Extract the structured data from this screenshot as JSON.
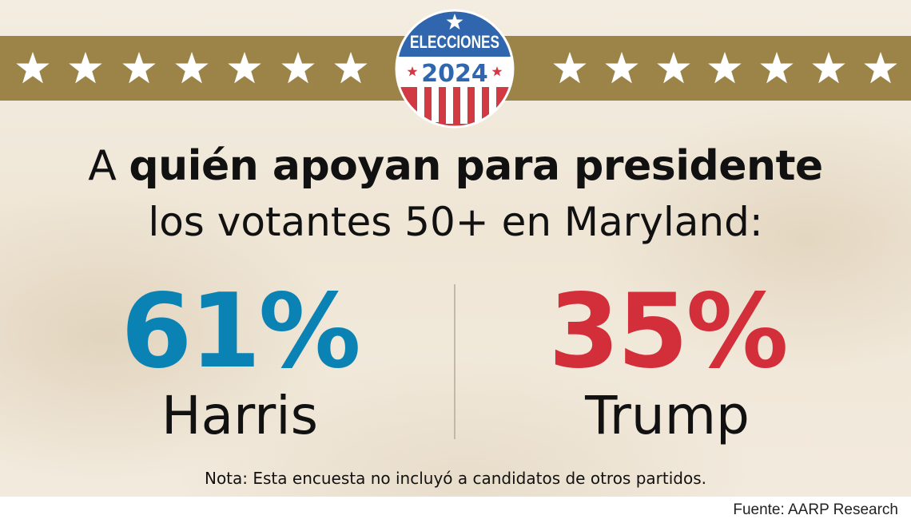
{
  "badge": {
    "word": "ELECCIONES",
    "year": "2024"
  },
  "headline": {
    "prefix": "A",
    "emphasis": "quién apoyan para presidente",
    "line2": "los votantes 50+ en Maryland:"
  },
  "chart_data": {
    "type": "table",
    "categories": [
      "Harris",
      "Trump"
    ],
    "values": [
      61,
      35
    ],
    "value_labels": [
      "61%",
      "35%"
    ],
    "unit": "%",
    "title": "A quién apoyan para presidente los votantes 50+ en Maryland:"
  },
  "note": "Nota: Esta encuesta no incluyó a candidatos de otros partidos.",
  "source": "Fuente: AARP Research",
  "colors": {
    "band": "#9c8449",
    "harris": "#0a83b4",
    "trump": "#d32f3a",
    "badge_blue": "#2f66ad",
    "badge_red": "#d23a43"
  },
  "icons": {
    "band_star": "star-icon",
    "badge_star": "badge-star-icon"
  }
}
